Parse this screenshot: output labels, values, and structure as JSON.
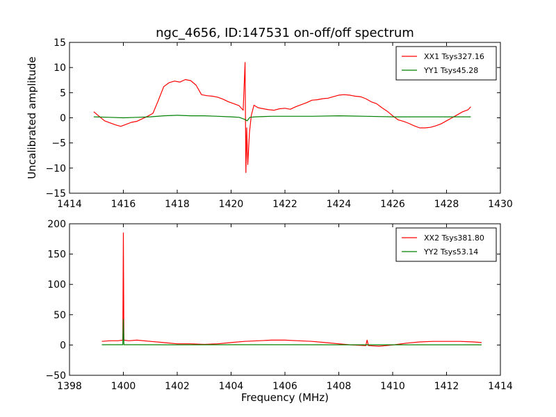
{
  "title": "ngc_4656, ID:147531 on-off/off spectrum",
  "colors": {
    "xx": "#ff0000",
    "yy": "#008000",
    "axes": "#000000",
    "background": "#ffffff"
  },
  "chart_data": [
    {
      "type": "line",
      "title": "ngc_4656, ID:147531 on-off/off spectrum",
      "xlabel": "",
      "ylabel": "Uncalibrated amplitude",
      "xlim": [
        1414,
        1430
      ],
      "ylim": [
        -15,
        15
      ],
      "xticks": [
        1414,
        1416,
        1418,
        1420,
        1422,
        1424,
        1426,
        1428,
        1430
      ],
      "yticks": [
        -15,
        -10,
        -5,
        0,
        5,
        10,
        15
      ],
      "xtick_labels": [
        "1414",
        "1416",
        "1418",
        "1420",
        "1422",
        "1424",
        "1426",
        "1428",
        "1430"
      ],
      "ytick_labels": [
        "−15",
        "−10",
        "−5",
        "0",
        "5",
        "10",
        "15"
      ],
      "legend_position": "top-right",
      "series": [
        {
          "name": "XX1 Tsys327.16",
          "color": "#ff0000",
          "x": [
            1414.9,
            1415.1,
            1415.3,
            1415.5,
            1415.7,
            1415.9,
            1416.1,
            1416.3,
            1416.5,
            1416.7,
            1416.9,
            1417.1,
            1417.3,
            1417.5,
            1417.7,
            1417.9,
            1418.1,
            1418.3,
            1418.5,
            1418.7,
            1418.9,
            1419.1,
            1419.3,
            1419.5,
            1419.7,
            1419.9,
            1420.1,
            1420.3,
            1420.45,
            1420.52,
            1420.55,
            1420.58,
            1420.62,
            1420.68,
            1420.75,
            1420.85,
            1421.0,
            1421.2,
            1421.4,
            1421.6,
            1421.8,
            1422.0,
            1422.2,
            1422.4,
            1422.6,
            1422.8,
            1423.0,
            1423.2,
            1423.4,
            1423.6,
            1423.8,
            1424.0,
            1424.2,
            1424.4,
            1424.6,
            1424.8,
            1425.0,
            1425.2,
            1425.4,
            1425.6,
            1425.8,
            1426.0,
            1426.2,
            1426.4,
            1426.6,
            1426.8,
            1427.0,
            1427.2,
            1427.4,
            1427.6,
            1427.8,
            1428.0,
            1428.2,
            1428.4,
            1428.6,
            1428.8,
            1428.9
          ],
          "y": [
            1.2,
            0.3,
            -0.6,
            -1.0,
            -1.4,
            -1.7,
            -1.3,
            -0.9,
            -0.7,
            -0.2,
            0.3,
            0.9,
            3.5,
            6.2,
            7.0,
            7.3,
            7.1,
            7.6,
            7.4,
            6.5,
            4.6,
            4.4,
            4.3,
            4.1,
            3.7,
            3.2,
            2.8,
            2.4,
            1.5,
            11.0,
            -10.9,
            -2.0,
            -9.3,
            -3.0,
            0.5,
            2.5,
            2.0,
            1.8,
            1.6,
            1.5,
            1.8,
            1.9,
            1.7,
            2.2,
            2.6,
            3.0,
            3.5,
            3.6,
            3.8,
            3.9,
            4.2,
            4.5,
            4.6,
            4.5,
            4.3,
            4.2,
            3.8,
            3.2,
            2.8,
            2.0,
            1.3,
            0.4,
            -0.4,
            -0.7,
            -1.1,
            -1.6,
            -2.0,
            -2.0,
            -1.9,
            -1.6,
            -1.2,
            -0.6,
            0.0,
            0.6,
            1.2,
            1.6,
            2.2
          ]
        },
        {
          "name": "YY1 Tsys45.28",
          "color": "#008000",
          "x": [
            1414.9,
            1415.5,
            1416.0,
            1416.5,
            1417.0,
            1417.5,
            1418.0,
            1418.5,
            1419.0,
            1419.5,
            1420.0,
            1420.3,
            1420.5,
            1420.6,
            1420.7,
            1420.9,
            1421.5,
            1422.0,
            1423.0,
            1424.0,
            1425.0,
            1426.0,
            1427.0,
            1428.0,
            1428.9
          ],
          "y": [
            0.2,
            0.1,
            0.0,
            0.1,
            0.2,
            0.4,
            0.5,
            0.4,
            0.4,
            0.3,
            0.2,
            0.1,
            -0.3,
            -0.6,
            0.1,
            0.2,
            0.3,
            0.3,
            0.3,
            0.4,
            0.3,
            0.2,
            0.2,
            0.2,
            0.2
          ]
        }
      ]
    },
    {
      "type": "line",
      "title": "",
      "xlabel": "Frequency (MHz)",
      "ylabel": "",
      "xlim": [
        1398,
        1414
      ],
      "ylim": [
        -50,
        200
      ],
      "xticks": [
        1398,
        1400,
        1402,
        1404,
        1406,
        1408,
        1410,
        1412,
        1414
      ],
      "yticks": [
        -50,
        0,
        50,
        100,
        150,
        200
      ],
      "xtick_labels": [
        "1398",
        "1400",
        "1402",
        "1404",
        "1406",
        "1408",
        "1410",
        "1412",
        "1414"
      ],
      "ytick_labels": [
        "−50",
        "0",
        "50",
        "100",
        "150",
        "200"
      ],
      "legend_position": "top-right",
      "series": [
        {
          "name": "XX2 Tsys381.80",
          "color": "#ff0000",
          "x": [
            1399.2,
            1399.5,
            1399.8,
            1399.98,
            1400.0,
            1400.02,
            1400.2,
            1400.5,
            1401.0,
            1401.5,
            1402.0,
            1402.5,
            1403.0,
            1403.5,
            1404.0,
            1404.5,
            1405.0,
            1405.5,
            1406.0,
            1406.5,
            1407.0,
            1407.5,
            1408.0,
            1408.5,
            1409.0,
            1409.05,
            1409.1,
            1409.5,
            1410.0,
            1410.5,
            1411.0,
            1411.5,
            1412.0,
            1412.5,
            1413.0,
            1413.3
          ],
          "y": [
            6,
            7,
            7,
            8,
            185,
            8,
            7,
            8,
            6,
            4,
            2,
            2,
            1,
            2,
            4,
            6,
            7,
            8,
            8,
            7,
            6,
            4,
            2,
            0,
            -1,
            8,
            -1,
            -2,
            0,
            3,
            5,
            6,
            6,
            6,
            5,
            4
          ]
        },
        {
          "name": "YY2 Tsys53.14",
          "color": "#008000",
          "x": [
            1399.2,
            1399.8,
            1399.98,
            1400.0,
            1400.02,
            1400.5,
            1402.0,
            1404.0,
            1406.0,
            1408.0,
            1409.0,
            1410.0,
            1412.0,
            1413.3
          ],
          "y": [
            0.5,
            0.5,
            0.5,
            42,
            0.5,
            0.5,
            0.4,
            0.5,
            0.5,
            0.4,
            0.3,
            0.4,
            0.4,
            0.3
          ]
        }
      ]
    }
  ]
}
